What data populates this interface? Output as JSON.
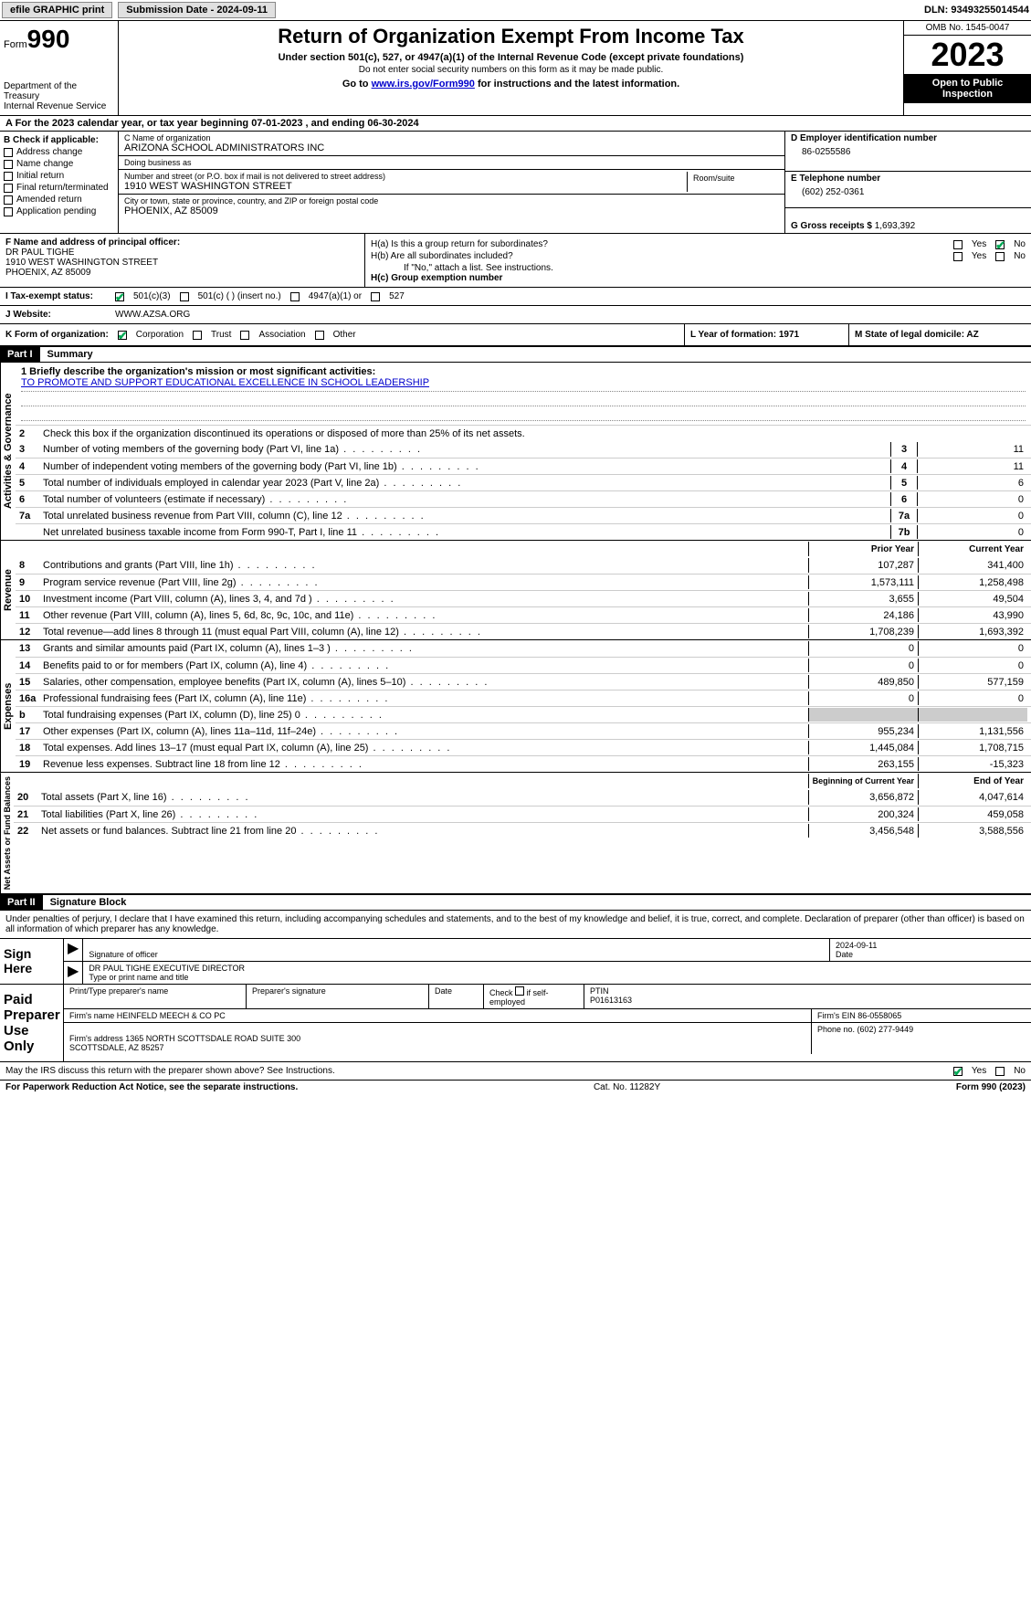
{
  "toolbar": {
    "efile_label": "efile GRAPHIC print",
    "sub_date_label": "Submission Date - 2024-09-11",
    "dln": "DLN: 93493255014544"
  },
  "header": {
    "form_word": "Form",
    "form_num": "990",
    "dept": "Department of the Treasury\nInternal Revenue Service",
    "title": "Return of Organization Exempt From Income Tax",
    "sub": "Under section 501(c), 527, or 4947(a)(1) of the Internal Revenue Code (except private foundations)",
    "note": "Do not enter social security numbers on this form as it may be made public.",
    "go": "Go to ",
    "go_link": "www.irs.gov/Form990",
    "go_tail": " for instructions and the latest information.",
    "omb": "OMB No. 1545-0047",
    "year": "2023",
    "open": "Open to Public Inspection"
  },
  "line_a": "A For the 2023 calendar year, or tax year beginning 07-01-2023   , and ending 06-30-2024",
  "box_b": {
    "hdr": "B Check if applicable:",
    "opts": [
      "Address change",
      "Name change",
      "Initial return",
      "Final return/terminated",
      "Amended return",
      "Application pending"
    ]
  },
  "box_c": {
    "name_lbl": "C Name of organization",
    "name": "ARIZONA SCHOOL ADMINISTRATORS INC",
    "dba_lbl": "Doing business as",
    "dba": "",
    "addr_lbl": "Number and street (or P.O. box if mail is not delivered to street address)",
    "addr": "1910 WEST WASHINGTON STREET",
    "room_lbl": "Room/suite",
    "city_lbl": "City or town, state or province, country, and ZIP or foreign postal code",
    "city": "PHOENIX, AZ  85009"
  },
  "box_d": {
    "ein_lbl": "D Employer identification number",
    "ein": "86-0255586",
    "phone_lbl": "E Telephone number",
    "phone": "(602) 252-0361",
    "gross_lbl": "G Gross receipts $ ",
    "gross": "1,693,392"
  },
  "box_f": {
    "lbl": "F  Name and address of principal officer:",
    "name": "DR PAUL TIGHE",
    "addr1": "1910 WEST WASHINGTON STREET",
    "addr2": "PHOENIX, AZ  85009"
  },
  "box_h": {
    "ha": "H(a)  Is this a group return for subordinates?",
    "hb": "H(b)  Are all subordinates included?",
    "hb_note": "If \"No,\" attach a list. See instructions.",
    "hc": "H(c)  Group exemption number  ",
    "yes": "Yes",
    "no": "No"
  },
  "row_i": {
    "lbl": "I  Tax-exempt status:",
    "o1": "501(c)(3)",
    "o2": "501(c) (  ) (insert no.)",
    "o3": "4947(a)(1) or",
    "o4": "527"
  },
  "row_j": {
    "lbl": "J  Website: ",
    "val": " WWW.AZSA.ORG"
  },
  "row_k": {
    "lbl": "K Form of organization:",
    "o1": "Corporation",
    "o2": "Trust",
    "o3": "Association",
    "o4": "Other"
  },
  "row_l": "L Year of formation: 1971",
  "row_m": "M State of legal domicile: AZ",
  "part1": {
    "hdr": "Part I",
    "title": "Summary"
  },
  "mission": {
    "lbl": "1   Briefly describe the organization's mission or most significant activities:",
    "val": "TO PROMOTE AND SUPPORT EDUCATIONAL EXCELLENCE IN SCHOOL LEADERSHIP"
  },
  "gov": {
    "side": "Activities & Governance",
    "l2": "Check this box       if the organization discontinued its operations or disposed of more than 25% of its net assets.",
    "rows": [
      {
        "n": "3",
        "d": "Number of voting members of the governing body (Part VI, line 1a)",
        "box": "3",
        "v": "11"
      },
      {
        "n": "4",
        "d": "Number of independent voting members of the governing body (Part VI, line 1b)",
        "box": "4",
        "v": "11"
      },
      {
        "n": "5",
        "d": "Total number of individuals employed in calendar year 2023 (Part V, line 2a)",
        "box": "5",
        "v": "6"
      },
      {
        "n": "6",
        "d": "Total number of volunteers (estimate if necessary)",
        "box": "6",
        "v": "0"
      },
      {
        "n": "7a",
        "d": "Total unrelated business revenue from Part VIII, column (C), line 12",
        "box": "7a",
        "v": "0"
      },
      {
        "n": "",
        "d": "Net unrelated business taxable income from Form 990-T, Part I, line 11",
        "box": "7b",
        "v": "0"
      }
    ]
  },
  "rev": {
    "side": "Revenue",
    "hdr_prior": "Prior Year",
    "hdr_curr": "Current Year",
    "rows": [
      {
        "n": "8",
        "d": "Contributions and grants (Part VIII, line 1h)",
        "p": "107,287",
        "c": "341,400"
      },
      {
        "n": "9",
        "d": "Program service revenue (Part VIII, line 2g)",
        "p": "1,573,111",
        "c": "1,258,498"
      },
      {
        "n": "10",
        "d": "Investment income (Part VIII, column (A), lines 3, 4, and 7d )",
        "p": "3,655",
        "c": "49,504"
      },
      {
        "n": "11",
        "d": "Other revenue (Part VIII, column (A), lines 5, 6d, 8c, 9c, 10c, and 11e)",
        "p": "24,186",
        "c": "43,990"
      },
      {
        "n": "12",
        "d": "Total revenue—add lines 8 through 11 (must equal Part VIII, column (A), line 12)",
        "p": "1,708,239",
        "c": "1,693,392"
      }
    ]
  },
  "exp": {
    "side": "Expenses",
    "rows": [
      {
        "n": "13",
        "d": "Grants and similar amounts paid (Part IX, column (A), lines 1–3 )",
        "p": "0",
        "c": "0"
      },
      {
        "n": "14",
        "d": "Benefits paid to or for members (Part IX, column (A), line 4)",
        "p": "0",
        "c": "0"
      },
      {
        "n": "15",
        "d": "Salaries, other compensation, employee benefits (Part IX, column (A), lines 5–10)",
        "p": "489,850",
        "c": "577,159"
      },
      {
        "n": "16a",
        "d": "Professional fundraising fees (Part IX, column (A), line 11e)",
        "p": "0",
        "c": "0"
      },
      {
        "n": "b",
        "d": "Total fundraising expenses (Part IX, column (D), line 25) 0",
        "p": "",
        "c": "",
        "shaded": true
      },
      {
        "n": "17",
        "d": "Other expenses (Part IX, column (A), lines 11a–11d, 11f–24e)",
        "p": "955,234",
        "c": "1,131,556"
      },
      {
        "n": "18",
        "d": "Total expenses. Add lines 13–17 (must equal Part IX, column (A), line 25)",
        "p": "1,445,084",
        "c": "1,708,715"
      },
      {
        "n": "19",
        "d": "Revenue less expenses. Subtract line 18 from line 12",
        "p": "263,155",
        "c": "-15,323"
      }
    ]
  },
  "net": {
    "side": "Net Assets or Fund Balances",
    "hdr_beg": "Beginning of Current Year",
    "hdr_end": "End of Year",
    "rows": [
      {
        "n": "20",
        "d": "Total assets (Part X, line 16)",
        "p": "3,656,872",
        "c": "4,047,614"
      },
      {
        "n": "21",
        "d": "Total liabilities (Part X, line 26)",
        "p": "200,324",
        "c": "459,058"
      },
      {
        "n": "22",
        "d": "Net assets or fund balances. Subtract line 21 from line 20",
        "p": "3,456,548",
        "c": "3,588,556"
      }
    ]
  },
  "part2": {
    "hdr": "Part II",
    "title": "Signature Block"
  },
  "sig_text": "Under penalties of perjury, I declare that I have examined this return, including accompanying schedules and statements, and to the best of my knowledge and belief, it is true, correct, and complete. Declaration of preparer (other than officer) is based on all information of which preparer has any knowledge.",
  "sign": {
    "left": "Sign Here",
    "date": "2024-09-11",
    "sig_lbl": "Signature of officer",
    "date_lbl": "Date",
    "name": "DR PAUL TIGHE  EXECUTIVE DIRECTOR",
    "name_lbl": "Type or print name and title"
  },
  "paid": {
    "left": "Paid Preparer Use Only",
    "h1": "Print/Type preparer's name",
    "h2": "Preparer's signature",
    "h3": "Date",
    "h4_a": "Check",
    "h4_b": "if self-employed",
    "h5": "PTIN",
    "ptin": "P01613163",
    "firm_lbl": "Firm's name    ",
    "firm": "HEINFELD MEECH & CO PC",
    "ein_lbl": "Firm's EIN  ",
    "ein": "86-0558065",
    "addr_lbl": "Firm's address ",
    "addr": "1365 NORTH SCOTTSDALE ROAD SUITE 300\nSCOTTSDALE, AZ  85257",
    "phone_lbl": "Phone no. ",
    "phone": "(602) 277-9449"
  },
  "discuss": "May the IRS discuss this return with the preparer shown above? See Instructions.",
  "footer": {
    "left": "For Paperwork Reduction Act Notice, see the separate instructions.",
    "mid": "Cat. No. 11282Y",
    "right_a": "Form ",
    "right_b": "990",
    "right_c": " (2023)"
  },
  "yn": {
    "yes": "Yes",
    "no": "No"
  }
}
